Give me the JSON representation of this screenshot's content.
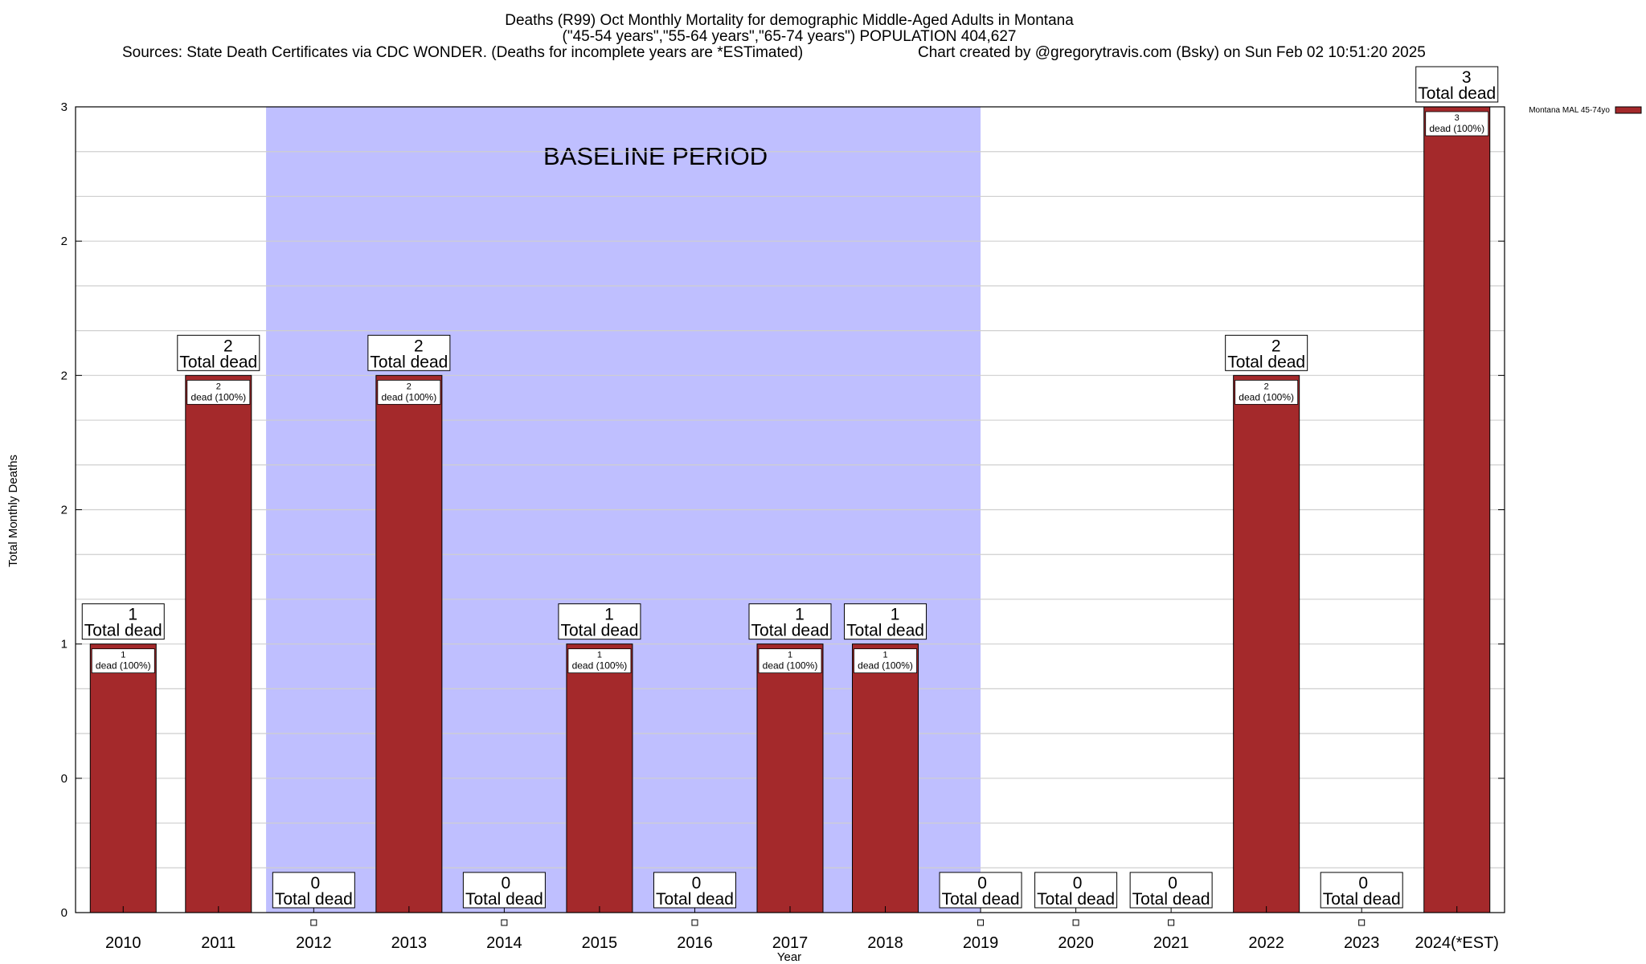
{
  "chart_data": {
    "type": "bar",
    "title_lines": [
      "Deaths (R99) Oct Monthly Mortality for demographic Middle-Aged Adults in Montana",
      "(\"45-54 years\",\"55-64 years\",\"65-74 years\") POPULATION 404,627"
    ],
    "source_text": "Sources: State Death Certificates via CDC WONDER. (Deaths for incomplete years are *ESTimated)",
    "credit_text": "Chart created by @gregorytravis.com (Bsky) on Sun Feb 02 10:51:20 2025",
    "xlabel": "Year",
    "ylabel": "Total Monthly Deaths",
    "ylim": [
      0,
      3
    ],
    "y_tick_values": [
      0,
      0.5,
      1,
      1.5,
      2,
      2.5,
      3
    ],
    "y_tick_labels": [
      "0",
      "0",
      "1",
      "2",
      "2",
      "2",
      "3"
    ],
    "grid": true,
    "categories": [
      "2010",
      "2011",
      "2012",
      "2013",
      "2014",
      "2015",
      "2016",
      "2017",
      "2018",
      "2019",
      "2020",
      "2021",
      "2022",
      "2023",
      "2024(*EST)"
    ],
    "series": [
      {
        "name": "Montana MAL 45-74yo",
        "color": "#a4292b",
        "values": [
          1,
          2,
          0,
          2,
          0,
          1,
          0,
          1,
          1,
          0,
          0,
          0,
          2,
          0,
          3
        ]
      }
    ],
    "total_label_numbers": [
      "1",
      "2",
      "0",
      "2",
      "0",
      "1",
      "0",
      "1",
      "1",
      "0",
      "0",
      "0",
      "2",
      "0",
      "3"
    ],
    "total_label_text": "Total dead",
    "inner_label_numbers": [
      "1",
      "2",
      "",
      "2",
      "",
      "1",
      "",
      "1",
      "1",
      "",
      "",
      "",
      "2",
      "",
      "3"
    ],
    "inner_label_text": "dead (100%)",
    "baseline": {
      "label": "BASELINE PERIOD",
      "start_category": "2012",
      "end_category": "2019",
      "color": "#bfbfff"
    },
    "legend": {
      "position": "top-right",
      "label": "Montana MAL 45-74yo"
    }
  }
}
